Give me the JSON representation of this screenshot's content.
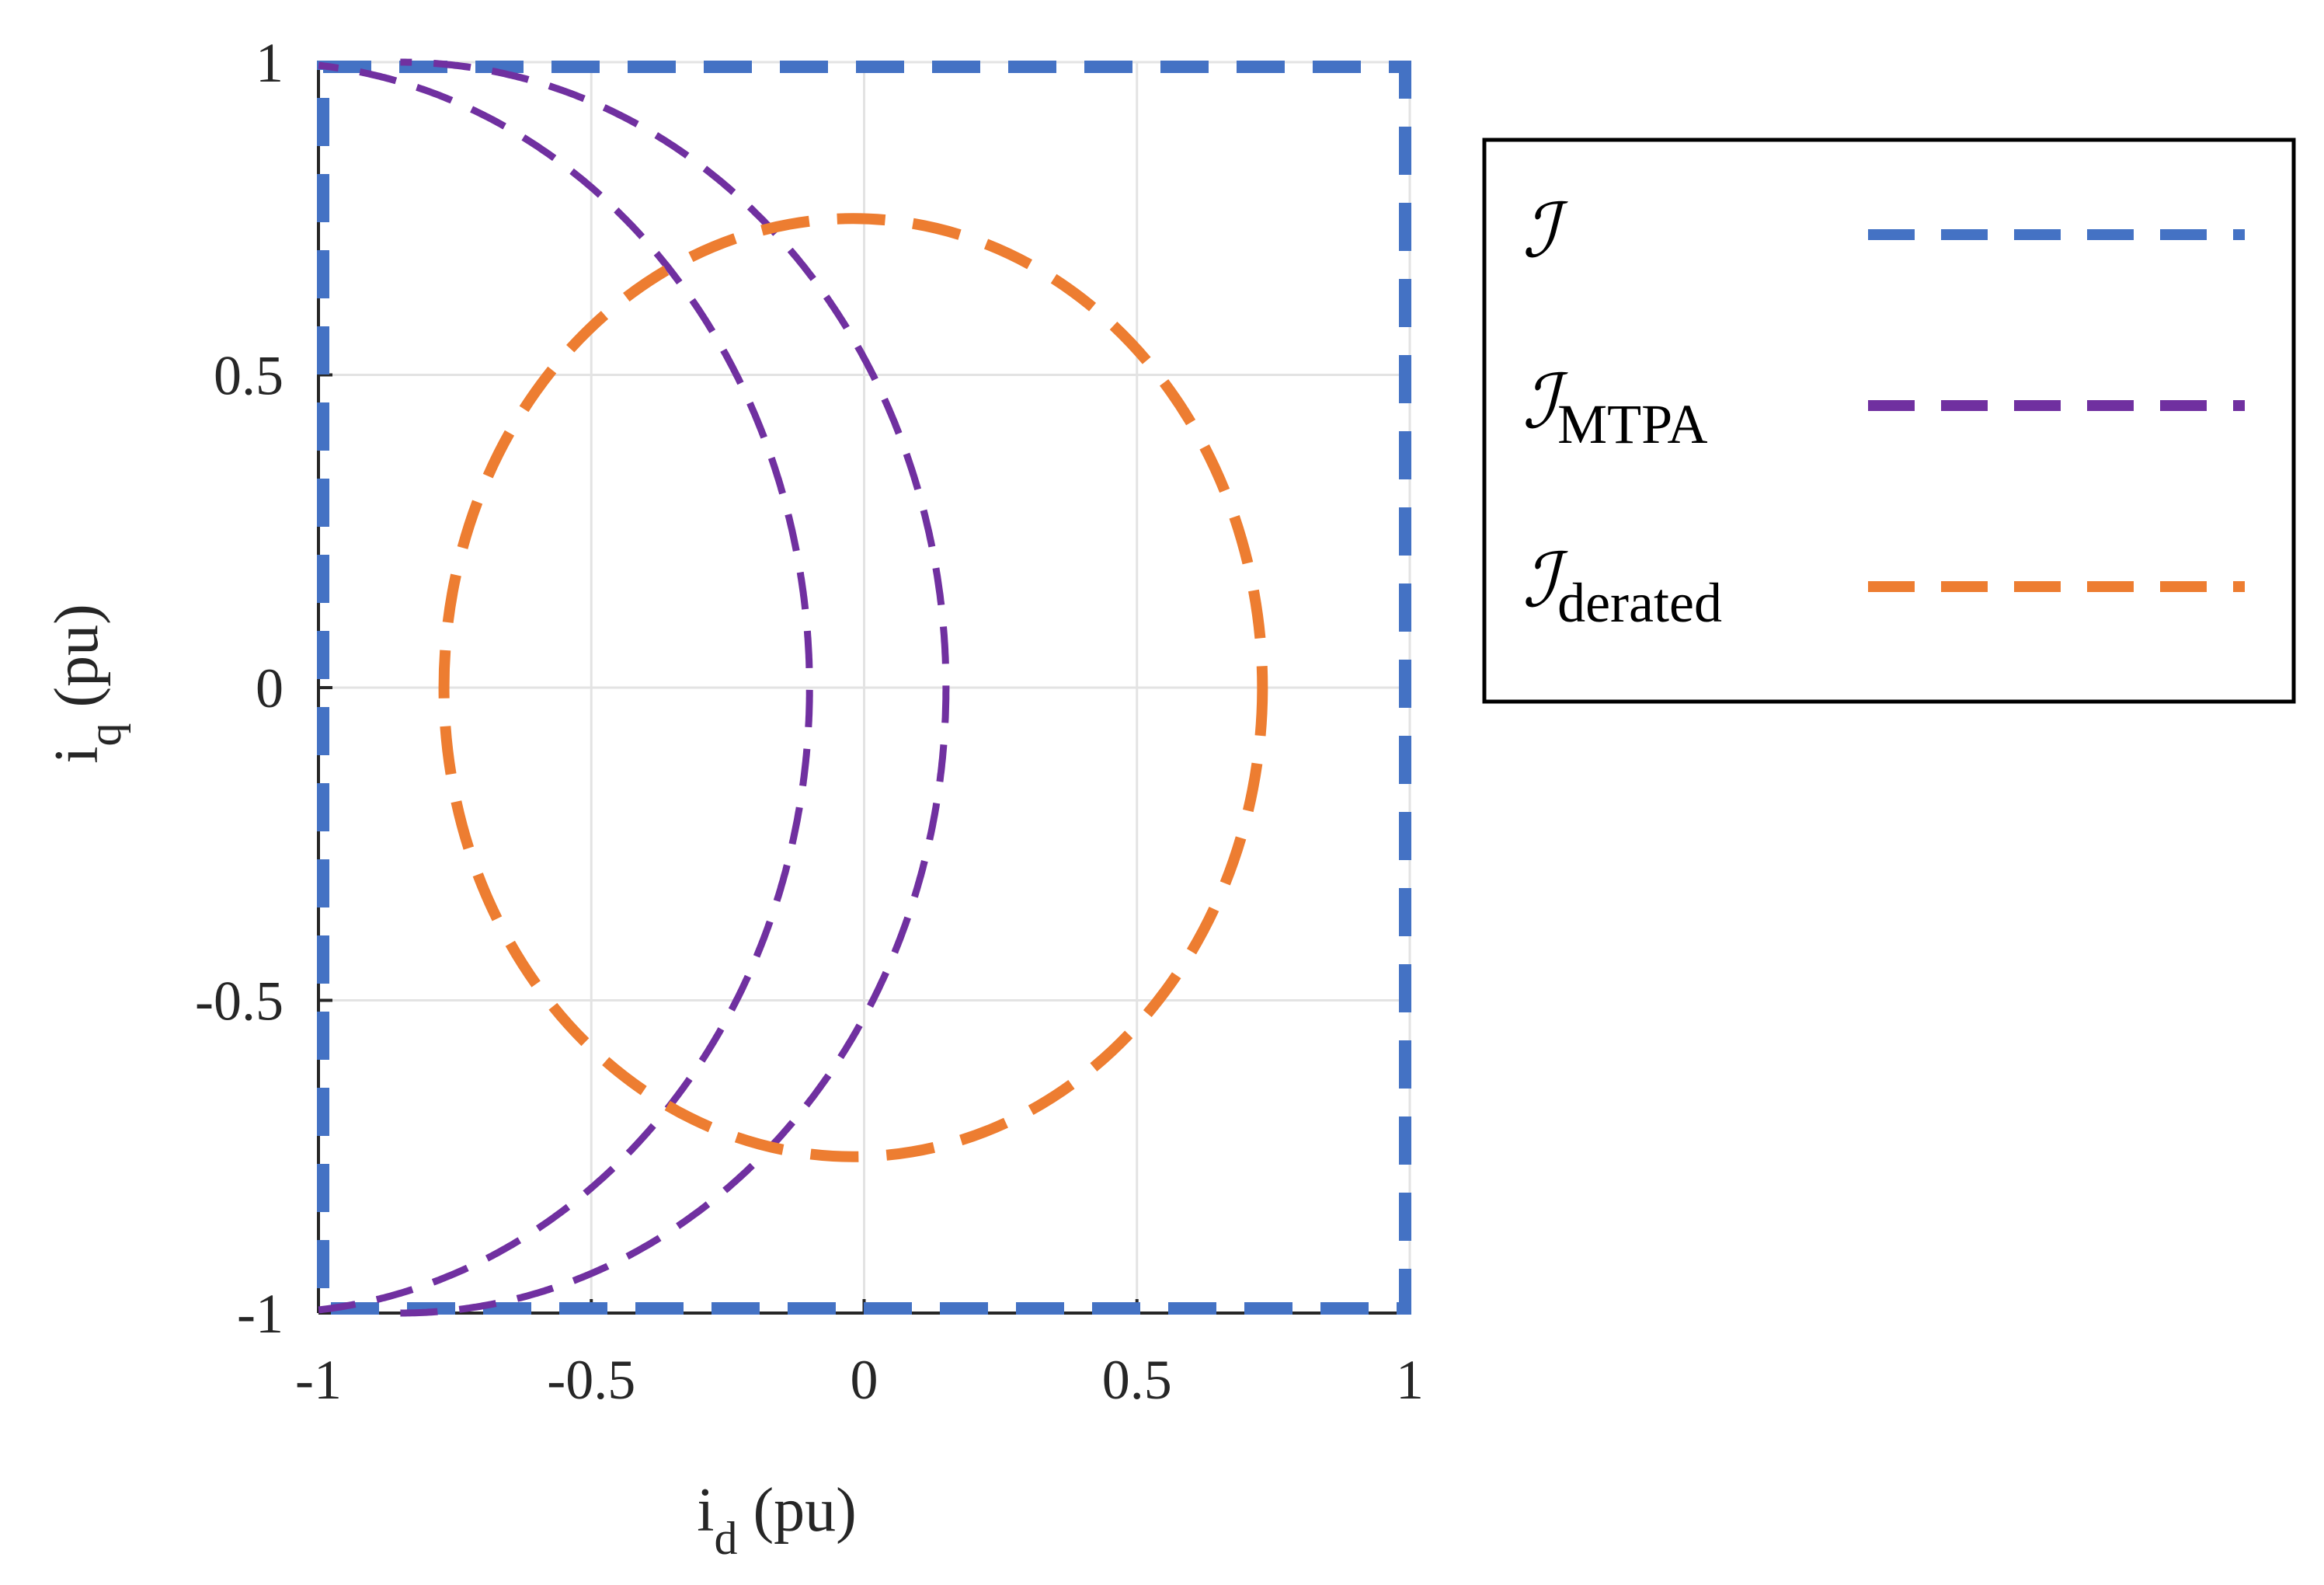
{
  "chart_data": {
    "type": "line",
    "xlabel": {
      "main": "i",
      "sub": "d",
      "unit": " (pu)"
    },
    "ylabel": {
      "main": "i",
      "sub": "q",
      "unit": " (pu)"
    },
    "xlim": [
      -1,
      1
    ],
    "ylim": [
      -1,
      1
    ],
    "xticks": [
      -1,
      -0.5,
      0,
      0.5,
      1
    ],
    "yticks": [
      -1,
      -0.5,
      0,
      0.5,
      1
    ],
    "xtick_labels": [
      "-1",
      "-0.5",
      "0",
      "0.5",
      "1"
    ],
    "ytick_labels": [
      "-1",
      "-0.5",
      "0",
      "0.5",
      "1"
    ],
    "grid": true,
    "legend_position": "outside-right-top",
    "series": [
      {
        "name": "ℐ",
        "name_sub": "",
        "shape": "box",
        "x_range": [
          -1,
          1
        ],
        "y_range": [
          -1,
          1
        ],
        "color": "#4472C4",
        "dash": "dashed"
      },
      {
        "name": "ℐ",
        "name_sub": "MTPA",
        "shape": "arcs",
        "arcs": [
          {
            "center": [
              -1.1,
              0
            ],
            "radius": 1.0
          },
          {
            "center": [
              -0.85,
              0
            ],
            "radius": 1.0
          }
        ],
        "color": "#7030A0",
        "dash": "dashed"
      },
      {
        "name": "ℐ",
        "name_sub": "derated",
        "shape": "circle",
        "center": [
          -0.02,
          0
        ],
        "radius": 0.75,
        "color": "#ED7D31",
        "dash": "dashed"
      }
    ]
  }
}
